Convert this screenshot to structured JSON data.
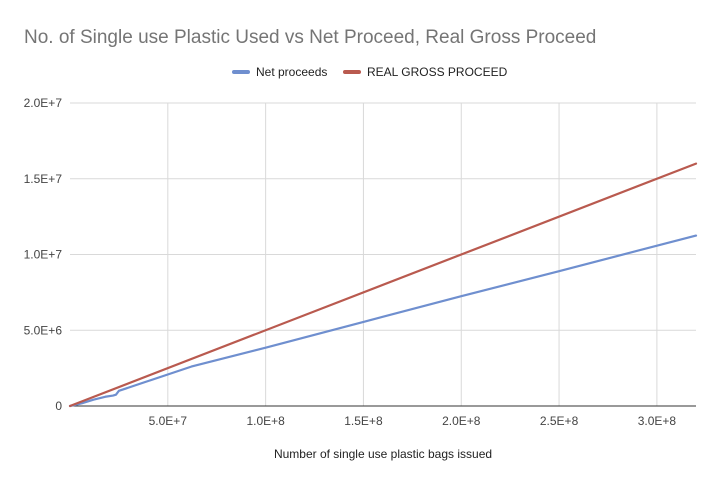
{
  "chart_data": {
    "type": "line",
    "title": "No. of Single use Plastic Used vs Net Proceed, Real Gross Proceed",
    "xlabel": "Number of single use plastic bags issued",
    "ylabel": "",
    "xlim": [
      0,
      320000000
    ],
    "ylim": [
      0,
      20000000
    ],
    "xticks": [
      50000000,
      100000000,
      150000000,
      200000000,
      250000000,
      300000000
    ],
    "xtick_labels": [
      "5.0E+7",
      "1.0E+8",
      "1.5E+8",
      "2.0E+8",
      "2.5E+8",
      "3.0E+8"
    ],
    "yticks": [
      0,
      5000000,
      10000000,
      15000000,
      20000000
    ],
    "ytick_labels": [
      "0",
      "5.0E+6",
      "1.0E+7",
      "1.5E+7",
      "2.0E+7"
    ],
    "grid": true,
    "legend_position": "top",
    "series": [
      {
        "name": "Net proceeds",
        "color": "#6f8fcf",
        "points": [
          [
            0,
            0
          ],
          [
            6000000,
            180000
          ],
          [
            12000000,
            420000
          ],
          [
            18000000,
            610000
          ],
          [
            22000000,
            690000
          ],
          [
            23500000,
            750000
          ],
          [
            25000000,
            1000000
          ],
          [
            40000000,
            1650000
          ],
          [
            62000000,
            2600000
          ],
          [
            100000000,
            3850000
          ],
          [
            150000000,
            5550000
          ],
          [
            200000000,
            7250000
          ],
          [
            250000000,
            8900000
          ],
          [
            320000000,
            11250000
          ]
        ]
      },
      {
        "name": "REAL GROSS PROCEED",
        "color": "#b95a4f",
        "points": [
          [
            0,
            0
          ],
          [
            320000000,
            16000000
          ]
        ]
      }
    ]
  }
}
